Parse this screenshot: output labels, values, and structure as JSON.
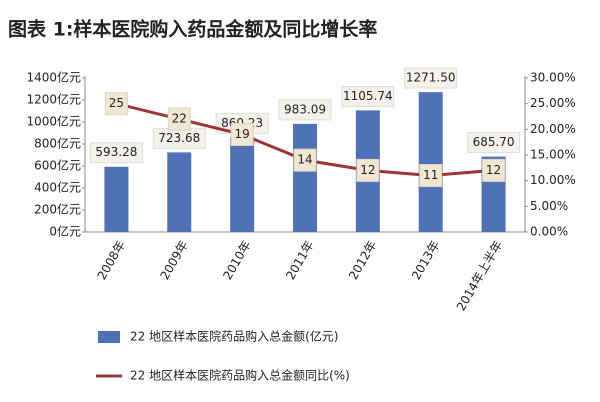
{
  "chart_data": {
    "type": "bar-line",
    "title": "图表 1:样本医院购入药品金额及同比增长率",
    "categories": [
      "2008年",
      "2009年",
      "2010年",
      "2011年",
      "2012年",
      "2013年",
      "2014年上半年"
    ],
    "series": [
      {
        "name": "22 地区样本医院药品购入总金额(亿元)",
        "type": "bar",
        "color": "#4f72b6",
        "values": [
          593.28,
          723.68,
          860.23,
          983.09,
          1105.74,
          1271.5,
          685.7
        ],
        "value_labels": [
          "593.28",
          "723.68",
          "860.23",
          "983.09",
          "1105.74",
          "1271.50",
          "685.70"
        ]
      },
      {
        "name": "22 地区样本医院药品购入总金额同比(%)",
        "type": "line",
        "color": "#9b3535",
        "axis": "y2",
        "values": [
          25,
          22,
          19,
          14,
          12,
          11,
          12
        ]
      }
    ],
    "ylim": [
      0,
      1400
    ],
    "yticks": [
      {
        "value": 0,
        "label": "0亿元"
      },
      {
        "value": 200,
        "label": "200亿元"
      },
      {
        "value": 400,
        "label": "400亿元"
      },
      {
        "value": 600,
        "label": "600亿元"
      },
      {
        "value": 800,
        "label": "800亿元"
      },
      {
        "value": 1000,
        "label": "1000亿元"
      },
      {
        "value": 1200,
        "label": "1200亿元"
      },
      {
        "value": 1400,
        "label": "1400亿元"
      }
    ],
    "y2lim": [
      0,
      30
    ],
    "y2ticks": [
      {
        "value": 0,
        "label": "0.00%"
      },
      {
        "value": 5,
        "label": "5.00%"
      },
      {
        "value": 10,
        "label": "10.00%"
      },
      {
        "value": 15,
        "label": "15.00%"
      },
      {
        "value": 20,
        "label": "20.00%"
      },
      {
        "value": 25,
        "label": "25.00%"
      },
      {
        "value": 30,
        "label": "30.00%"
      }
    ],
    "grid": false
  }
}
